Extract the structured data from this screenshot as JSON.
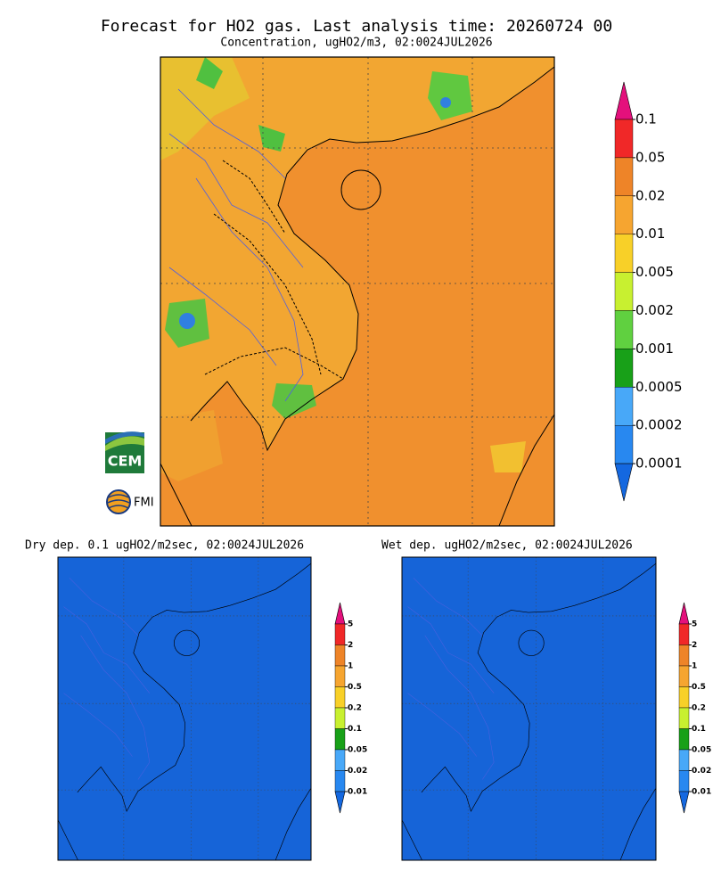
{
  "header": {
    "title": "Forecast for HO2 gas. Last analysis time: 20260724 00"
  },
  "panels": [
    {
      "subtitle": "Concentration, ugHO2/m3, 02:0024JUL2026",
      "colorbar": {
        "labels": [
          "0.1",
          "0.05",
          "0.02",
          "0.01",
          "0.005",
          "0.002",
          "0.001",
          "0.0005",
          "0.0002",
          "0.0001"
        ],
        "colors": [
          "#e4107c",
          "#f02828",
          "#ee8428",
          "#f6a530",
          "#f8d028",
          "#c8f030",
          "#60d040",
          "#18a018",
          "#48a8f8",
          "#2888f0",
          "#1468e0"
        ]
      }
    },
    {
      "subtitle": "Dry dep. 0.1 ugHO2/m2sec, 02:0024JUL2026",
      "colorbar": {
        "labels": [
          "5",
          "2",
          "1",
          "0.5",
          "0.2",
          "0.1",
          "0.05",
          "0.02",
          "0.01"
        ],
        "colors": [
          "#e4107c",
          "#f02828",
          "#ee8428",
          "#f6a530",
          "#f8d028",
          "#c8f030",
          "#18a018",
          "#48a8f8",
          "#2888f0",
          "#1468e0"
        ]
      }
    },
    {
      "subtitle": "Wet dep. ugHO2/m2sec, 02:0024JUL2026",
      "colorbar": {
        "labels": [
          "5",
          "2",
          "1",
          "0.5",
          "0.2",
          "0.1",
          "0.05",
          "0.02",
          "0.01"
        ],
        "colors": [
          "#e4107c",
          "#f02828",
          "#ee8428",
          "#f6a530",
          "#f8d028",
          "#c8f030",
          "#18a018",
          "#48a8f8",
          "#2888f0",
          "#1468e0"
        ]
      }
    }
  ],
  "logos": {
    "cem": "CEM",
    "fmi": "FMI"
  }
}
